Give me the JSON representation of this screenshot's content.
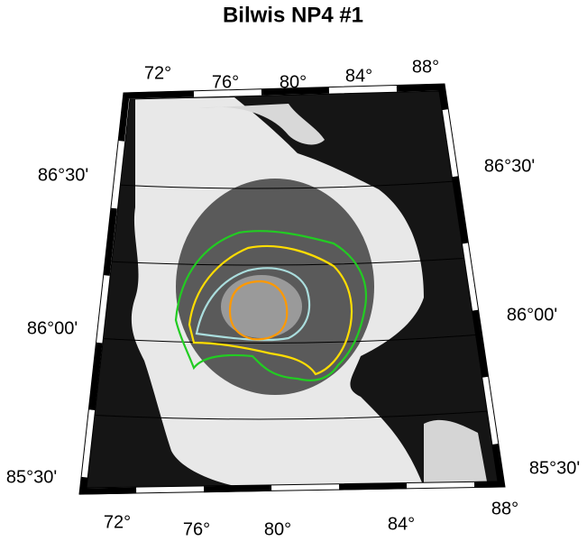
{
  "title": "Bilwis NP4 #1",
  "top_labels": [
    "72°",
    "76°",
    "80°",
    "84°",
    "88°"
  ],
  "bottom_labels": [
    "72°",
    "76°",
    "80°",
    "84°",
    "88°"
  ],
  "left_labels": [
    "86°30'",
    "86°00'",
    "85°30'"
  ],
  "right_labels": [
    "86°30'",
    "86°00'",
    "85°30'"
  ]
}
